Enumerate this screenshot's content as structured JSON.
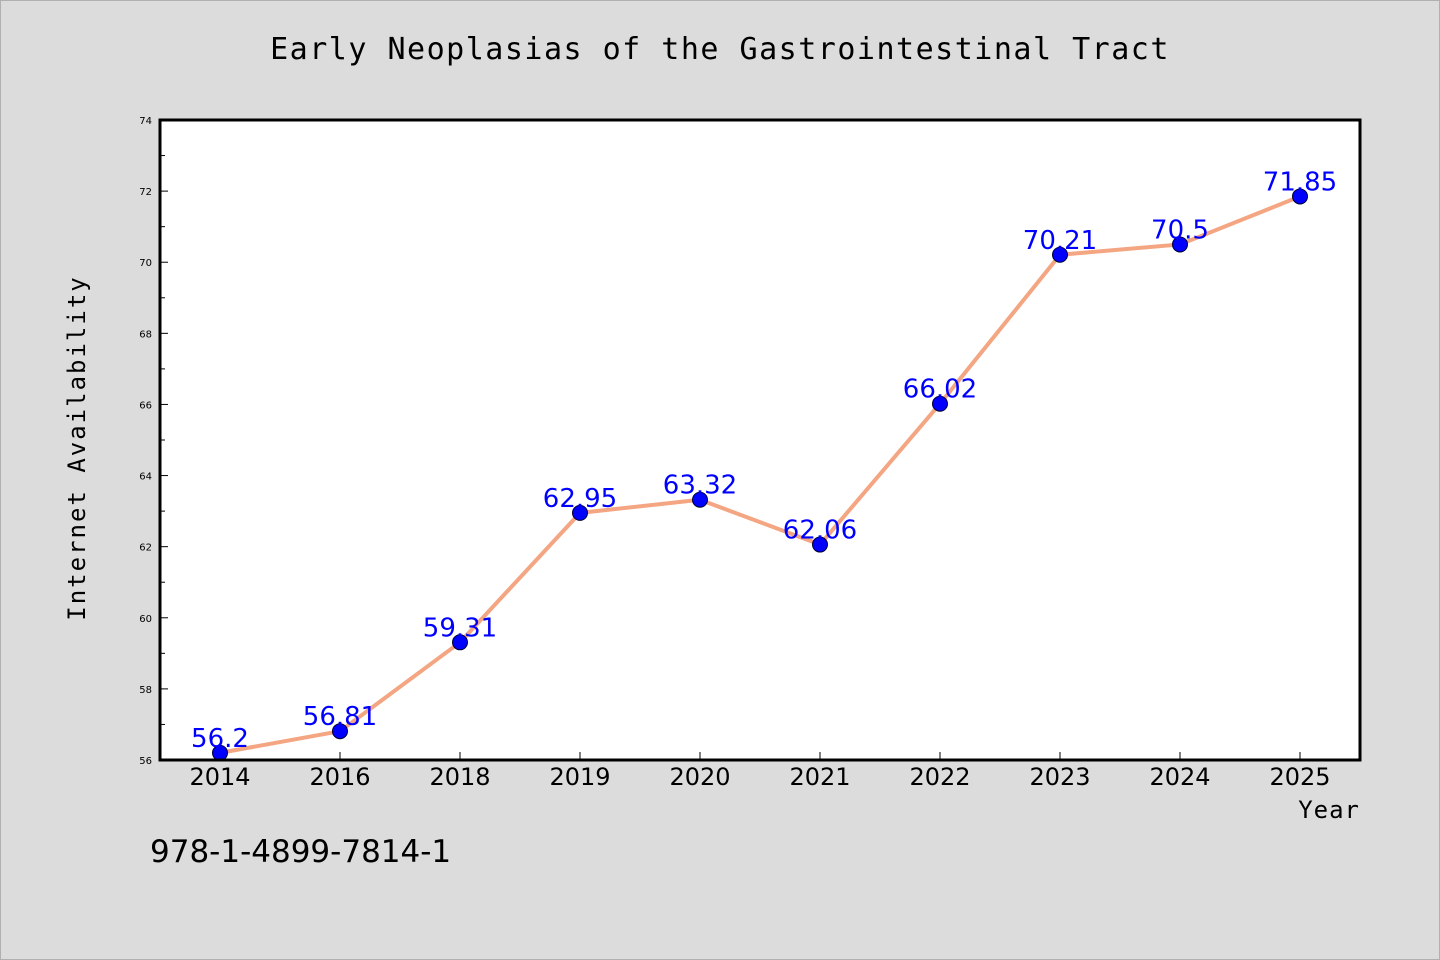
{
  "chart_data": {
    "type": "line",
    "title": "Early Neoplasias of the Gastrointestinal Tract",
    "xlabel": "Year",
    "ylabel": "Internet Availability",
    "categories": [
      "2014",
      "2016",
      "2018",
      "2019",
      "2020",
      "2021",
      "2022",
      "2023",
      "2024",
      "2025"
    ],
    "series": [
      {
        "values": [
          56.2,
          56.81,
          59.31,
          62.95,
          63.32,
          62.06,
          66.02,
          70.21,
          70.5,
          71.85
        ],
        "labels": [
          "56.2",
          "56.81",
          "59.31",
          "62.95",
          "63.32",
          "62.06",
          "66.02",
          "70.21",
          "70.5",
          "71.85"
        ],
        "line_color": "#f4a582",
        "marker_color": "#0000ff"
      }
    ],
    "ylim": [
      56,
      74
    ],
    "yticks": [
      "56",
      "58",
      "60",
      "62",
      "64",
      "66",
      "68",
      "70",
      "72",
      "74"
    ],
    "grid": false,
    "legend": "none"
  },
  "footer_text": "978-1-4899-7814-1",
  "colors": {
    "background": "#dcdcdc",
    "plot_background": "#ffffff",
    "line": "#f4a582",
    "markers": "#0000ff",
    "data_labels": "#0000ff"
  }
}
